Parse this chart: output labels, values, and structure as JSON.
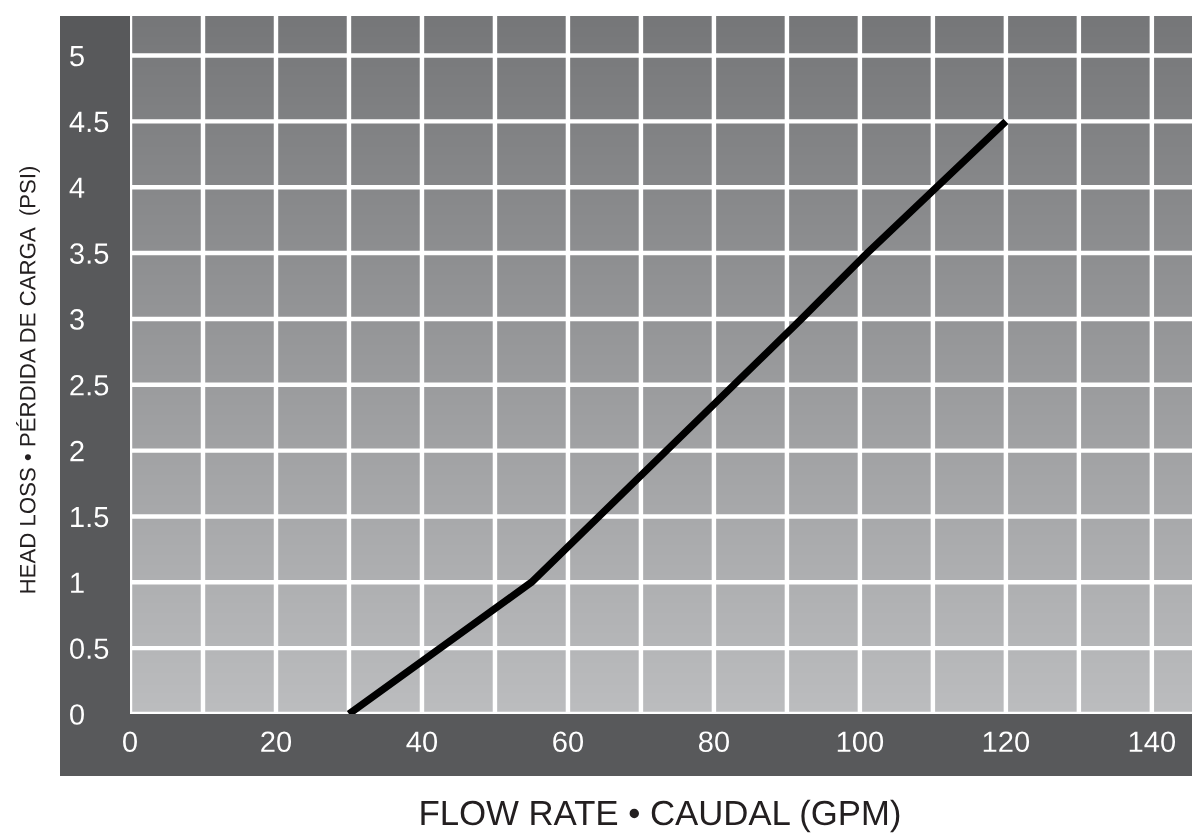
{
  "chart_data": {
    "type": "line",
    "xlabel": "FLOW RATE • CAUDAL (GPM)",
    "ylabel": "HEAD LOSS • PÉRDIDA DE CARGA  (PSI)",
    "x": [
      30,
      55,
      92,
      101,
      120
    ],
    "series": [
      {
        "color": "#000000",
        "values": [
          0,
          1,
          3,
          3.5,
          4.5
        ]
      }
    ],
    "xlim": [
      0,
      145.5
    ],
    "ylim": [
      0,
      5.3
    ],
    "xticks": [
      0,
      {
        "value": 10,
        "label": null
      },
      20,
      {
        "value": 30,
        "label": null
      },
      40,
      {
        "value": 50,
        "label": null
      },
      60,
      {
        "value": 70,
        "label": null
      },
      80,
      {
        "value": 90,
        "label": null
      },
      100,
      {
        "value": 110,
        "label": null
      },
      120,
      {
        "value": 130,
        "label": null
      },
      140
    ],
    "yticks": [
      0,
      0.5,
      1,
      1.5,
      2,
      2.5,
      3,
      3.5,
      4,
      4.5,
      5
    ],
    "grid": true,
    "marker": "none",
    "line_style": "solid"
  }
}
